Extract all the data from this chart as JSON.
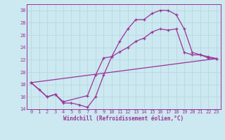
{
  "xlabel": "Windchill (Refroidissement éolien,°C)",
  "bg_color": "#cce8f0",
  "line_color": "#993399",
  "grid_color": "#b8d8e0",
  "xlim": [
    -0.5,
    23.5
  ],
  "ylim": [
    14,
    31
  ],
  "xticks": [
    0,
    1,
    2,
    3,
    4,
    5,
    6,
    7,
    8,
    9,
    10,
    11,
    12,
    13,
    14,
    15,
    16,
    17,
    18,
    19,
    20,
    21,
    22,
    23
  ],
  "yticks": [
    14,
    16,
    18,
    20,
    22,
    24,
    26,
    28,
    30
  ],
  "line1_x": [
    0,
    1,
    2,
    3,
    4,
    5,
    6,
    7,
    8,
    9,
    10,
    11,
    12,
    13,
    14,
    15,
    16,
    17,
    18,
    19,
    20,
    21,
    22,
    23
  ],
  "line1_y": [
    18.3,
    17.2,
    16.0,
    16.4,
    15.0,
    15.0,
    14.7,
    14.3,
    16.0,
    19.5,
    22.5,
    25.0,
    27.0,
    28.5,
    28.5,
    29.5,
    30.0,
    30.0,
    29.3,
    27.0,
    23.2,
    22.8,
    22.3,
    22.2
  ],
  "line2_x": [
    0,
    2,
    3,
    4,
    7,
    8,
    9,
    10,
    11,
    12,
    13,
    14,
    15,
    16,
    17,
    18,
    19,
    20,
    21,
    22,
    23
  ],
  "line2_y": [
    18.3,
    16.0,
    16.4,
    15.2,
    16.2,
    19.5,
    22.3,
    22.5,
    23.3,
    24.0,
    25.0,
    25.5,
    26.5,
    27.0,
    26.8,
    27.0,
    23.2,
    22.8,
    22.8,
    22.5,
    22.2
  ],
  "line3_x": [
    0,
    23
  ],
  "line3_y": [
    18.3,
    22.2
  ]
}
